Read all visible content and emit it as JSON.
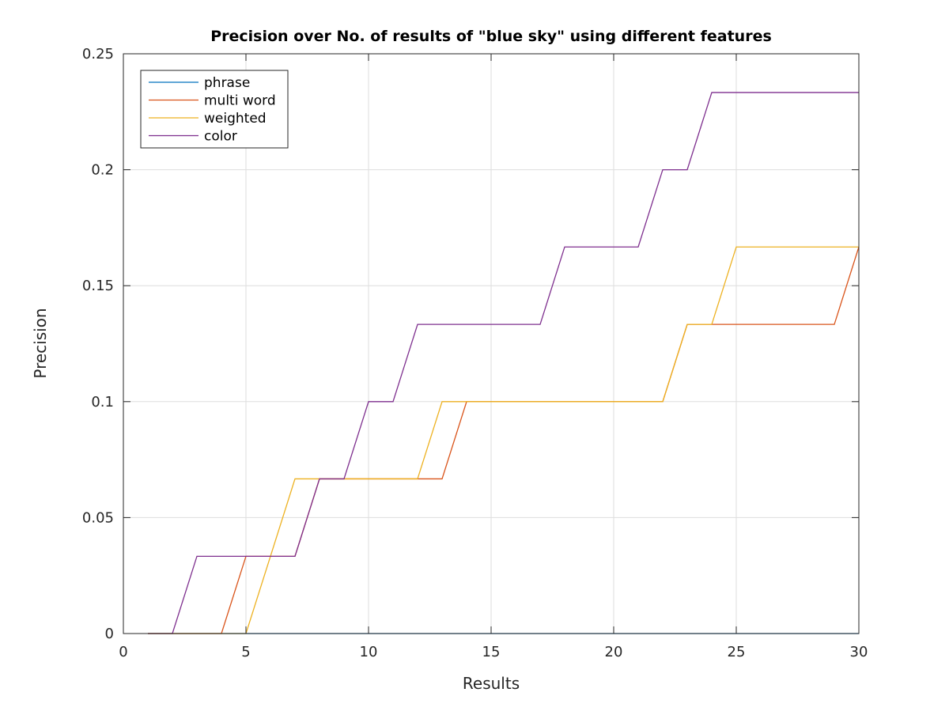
{
  "chart_data": {
    "type": "line",
    "title": "Precision over No. of results of \"blue sky\" using different features",
    "xlabel": "Results",
    "ylabel": "Precision",
    "xlim": [
      0,
      30
    ],
    "ylim": [
      0,
      0.25
    ],
    "x_ticks": [
      "0",
      "5",
      "10",
      "15",
      "20",
      "25",
      "30"
    ],
    "y_ticks": [
      "0",
      "0.05",
      "0.1",
      "0.15",
      "0.2",
      "0.25"
    ],
    "x_tick_values": [
      0,
      5,
      10,
      15,
      20,
      25,
      30
    ],
    "y_tick_values": [
      0,
      0.05,
      0.1,
      0.15,
      0.2,
      0.25
    ],
    "grid": true,
    "legend_position": "top-left",
    "x": [
      1,
      2,
      3,
      4,
      5,
      6,
      7,
      8,
      9,
      10,
      11,
      12,
      13,
      14,
      15,
      16,
      17,
      18,
      19,
      20,
      21,
      22,
      23,
      24,
      25,
      26,
      27,
      28,
      29,
      30
    ],
    "series": [
      {
        "name": "phrase",
        "color": "#0072BD",
        "values": [
          0,
          0,
          0,
          0,
          0,
          0,
          0,
          0,
          0,
          0,
          0,
          0,
          0,
          0,
          0,
          0,
          0,
          0,
          0,
          0,
          0,
          0,
          0,
          0,
          0,
          0,
          0,
          0,
          0,
          0
        ]
      },
      {
        "name": "multi word",
        "color": "#D95319",
        "values": [
          0,
          0,
          0,
          0,
          0.0333,
          0.0333,
          0.0333,
          0.0667,
          0.0667,
          0.0667,
          0.0667,
          0.0667,
          0.0667,
          0.1,
          0.1,
          0.1,
          0.1,
          0.1,
          0.1,
          0.1,
          0.1,
          0.1,
          0.1333,
          0.1333,
          0.1333,
          0.1333,
          0.1333,
          0.1333,
          0.1333,
          0.1667
        ]
      },
      {
        "name": "weighted",
        "color": "#EDB120",
        "values": [
          0,
          0,
          0,
          0,
          0,
          0.0333,
          0.0667,
          0.0667,
          0.0667,
          0.0667,
          0.0667,
          0.0667,
          0.1,
          0.1,
          0.1,
          0.1,
          0.1,
          0.1,
          0.1,
          0.1,
          0.1,
          0.1,
          0.1333,
          0.1333,
          0.1667,
          0.1667,
          0.1667,
          0.1667,
          0.1667,
          0.1667
        ]
      },
      {
        "name": "color",
        "color": "#7E2F8E",
        "values": [
          0,
          0,
          0.0333,
          0.0333,
          0.0333,
          0.0333,
          0.0333,
          0.0667,
          0.0667,
          0.1,
          0.1,
          0.1333,
          0.1333,
          0.1333,
          0.1333,
          0.1333,
          0.1333,
          0.1667,
          0.1667,
          0.1667,
          0.1667,
          0.2,
          0.2,
          0.2333,
          0.2333,
          0.2333,
          0.2333,
          0.2333,
          0.2333,
          0.2333
        ]
      }
    ]
  }
}
